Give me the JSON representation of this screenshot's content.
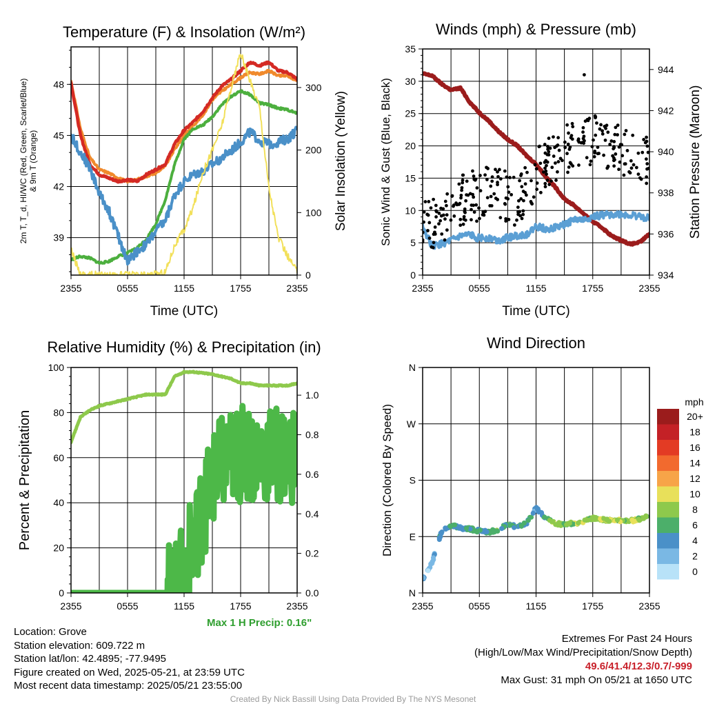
{
  "colors": {
    "temp_red": "#d42a24",
    "temp_orange": "#f08a2c",
    "temp_green": "#4caf3e",
    "temp_blue": "#4a90c8",
    "insolation_yellow": "#f2e05a",
    "wind_blue": "#5b9fd4",
    "gust_black": "#000000",
    "pressure_maroon": "#9b1c1c",
    "rh_green": "#8ec94c",
    "precip_green": "#4db848",
    "extremes_red": "#c8202a",
    "precip_note_green": "#2e9e2e"
  },
  "chart_data": [
    {
      "type": "line",
      "title": "Temperature (F) & Insolation (W/m²)",
      "xlabel": "Time (UTC)",
      "ylabel": "2m T, T_d, HI/WC (Red, Green, Scarlet/Blue) & 9m T (Orange)",
      "ylabel_lines": [
        "2m T, T_d, HI/WC (Red, Green, Scarlet/Blue)",
        "& 9m T (Orange)"
      ],
      "ylabel_right": "Solar Insolation (Yellow)",
      "xticks": [
        "2355",
        "0555",
        "1155",
        "1755",
        "2355"
      ],
      "yticks_left": [
        39,
        42,
        45,
        48
      ],
      "yticks_right": [
        0,
        100,
        200,
        300
      ],
      "ylim_left": [
        36.8,
        50.2
      ],
      "ylim_right": [
        0,
        365
      ],
      "grid": true,
      "x": [
        0,
        1,
        2,
        3,
        4,
        5,
        6,
        7,
        8,
        9,
        10,
        11,
        12,
        13,
        14,
        15,
        16,
        17,
        18,
        19,
        20,
        21,
        22,
        23,
        24
      ],
      "series": [
        {
          "color_key": "temp_orange",
          "axis": "left",
          "width": 4,
          "values": [
            48.2,
            45.4,
            43.7,
            43.0,
            42.8,
            42.5,
            42.3,
            42.4,
            42.6,
            42.8,
            43.2,
            44.2,
            45.0,
            45.6,
            46.2,
            47.1,
            47.6,
            48.0,
            48.4,
            48.7,
            48.6,
            48.8,
            48.5,
            48.5,
            48.2
          ]
        },
        {
          "color_key": "temp_red",
          "axis": "left",
          "width": 4.5,
          "values": [
            48.1,
            45.0,
            43.3,
            42.7,
            42.5,
            42.3,
            42.4,
            42.3,
            42.7,
            43.0,
            43.3,
            44.5,
            45.3,
            45.8,
            46.4,
            47.2,
            47.9,
            48.3,
            48.8,
            49.3,
            49.1,
            49.3,
            48.8,
            48.7,
            48.3
          ]
        },
        {
          "color_key": "temp_green",
          "axis": "left",
          "width": 4,
          "values": [
            37.7,
            37.9,
            37.8,
            37.5,
            37.6,
            37.9,
            38.1,
            38.4,
            38.9,
            39.8,
            41.2,
            43.3,
            44.8,
            45.4,
            45.6,
            46.1,
            46.8,
            47.3,
            47.6,
            47.4,
            46.9,
            46.8,
            46.6,
            46.5,
            46.3
          ]
        },
        {
          "color_key": "temp_blue",
          "axis": "left",
          "width": 4,
          "values": [
            45.0,
            44.0,
            43.1,
            41.6,
            40.6,
            39.1,
            37.6,
            38.2,
            38.6,
            39.4,
            40.0,
            41.5,
            42.3,
            42.7,
            42.9,
            43.3,
            43.7,
            44.1,
            44.6,
            45.2,
            44.7,
            44.5,
            44.6,
            44.8,
            45.3
          ]
        },
        {
          "color_key": "insolation_yellow",
          "axis": "right",
          "width": 2,
          "values": [
            40,
            2,
            1,
            0,
            0,
            0,
            0,
            0,
            0,
            1,
            5,
            48,
            72,
            110,
            165,
            200,
            240,
            300,
            355,
            310,
            270,
            140,
            60,
            30,
            5
          ]
        }
      ]
    },
    {
      "type": "scatter",
      "title": "Winds (mph) & Pressure (mb)",
      "xlabel": "Time (UTC)",
      "ylabel": "Sonic Wind & Gust (Blue, Black)",
      "ylabel_right": "Station Pressure (Maroon)",
      "xticks": [
        "2355",
        "0555",
        "1155",
        "1755",
        "2355"
      ],
      "yticks_left": [
        0,
        5,
        10,
        15,
        20,
        25,
        30,
        35
      ],
      "yticks_right": [
        934,
        936,
        938,
        940,
        942,
        944
      ],
      "ylim_left": [
        0,
        35
      ],
      "ylim_right": [
        934,
        945
      ],
      "grid": true,
      "x": [
        0,
        1,
        2,
        3,
        4,
        5,
        6,
        7,
        8,
        9,
        10,
        11,
        12,
        13,
        14,
        15,
        16,
        17,
        18,
        19,
        20,
        21,
        22,
        23,
        24
      ],
      "series": [
        {
          "color_key": "pressure_maroon",
          "axis": "right",
          "width": 6,
          "values": [
            943.8,
            943.7,
            943.3,
            943.0,
            943.1,
            942.4,
            941.9,
            941.5,
            941.0,
            940.6,
            940.3,
            939.8,
            939.4,
            938.8,
            938.3,
            937.7,
            937.4,
            937.0,
            936.6,
            936.3,
            935.9,
            935.7,
            935.5,
            935.6,
            936.0
          ]
        },
        {
          "color_key": "wind_blue",
          "axis": "left",
          "width": 4,
          "values": [
            7.5,
            4.5,
            4.8,
            5.3,
            6.0,
            6.2,
            5.7,
            5.8,
            5.4,
            5.8,
            6.1,
            6.3,
            7.5,
            7.2,
            7.3,
            7.8,
            8.6,
            8.5,
            9.0,
            9.3,
            9.4,
            9.4,
            9.2,
            9.1,
            8.8
          ]
        },
        {
          "color_key": "gust_black",
          "axis": "left",
          "kind": "points",
          "values": [
            7.5,
            7.8,
            8.5,
            10.5,
            11.5,
            12.0,
            12.4,
            12.8,
            12.5,
            12.2,
            11.5,
            13.5,
            15.5,
            16.8,
            18.5,
            19.5,
            20.5,
            20.5,
            21.0,
            20.5,
            20.0,
            19.5,
            19.0,
            18.5,
            17.5
          ],
          "max": 31
        }
      ]
    },
    {
      "type": "line",
      "title": "Relative Humidity (%) & Precipitation (in)",
      "xlabel": "",
      "ylabel": "Percent & Precipitation",
      "xticks": [
        "2355",
        "0555",
        "1155",
        "1755",
        "2355"
      ],
      "yticks_left": [
        0,
        20,
        40,
        60,
        80,
        100
      ],
      "yticks_right": [
        "0.0",
        "0.2",
        "0.4",
        "0.6",
        "0.8",
        "1.0"
      ],
      "ylim_left": [
        0,
        100
      ],
      "ylim_right": [
        0,
        1.14
      ],
      "grid": true,
      "x": [
        0,
        1,
        2,
        3,
        4,
        5,
        6,
        7,
        8,
        9,
        10,
        11,
        12,
        13,
        14,
        15,
        16,
        17,
        18,
        19,
        20,
        21,
        22,
        23,
        24
      ],
      "series": [
        {
          "color_key": "rh_green",
          "axis": "left",
          "width": 5,
          "values": [
            67,
            78,
            81,
            83,
            84,
            85,
            86,
            87,
            88,
            88,
            88,
            96,
            98,
            98,
            97.5,
            97,
            96,
            95,
            93,
            93,
            92,
            92,
            92,
            92,
            93
          ]
        },
        {
          "color_key": "precip_green",
          "axis": "right",
          "width": 9,
          "values": [
            0,
            0,
            0,
            0,
            0,
            0,
            0,
            0,
            0,
            0,
            0,
            0.01,
            0.1,
            0.27,
            0.42,
            0.56,
            0.65,
            0.69,
            0.7,
            0.7,
            0.7,
            0.7,
            0.7,
            0.7,
            0.7
          ]
        }
      ]
    },
    {
      "type": "scatter",
      "title": "Wind Direction",
      "xlabel": "",
      "ylabel": "Direction (Colored By Speed)",
      "xticks": [
        "2355",
        "0555",
        "1155",
        "1755",
        "2355"
      ],
      "yticks_left": [
        "N",
        "E",
        "S",
        "W",
        "N"
      ],
      "ylim_left": [
        0,
        360
      ],
      "grid": true,
      "x": [
        0,
        1,
        2,
        3,
        4,
        5,
        6,
        7,
        8,
        9,
        10,
        11,
        12,
        13,
        14,
        15,
        16,
        17,
        18,
        19,
        20,
        21,
        22,
        23,
        24
      ],
      "direction_deg": [
        22,
        48,
        98,
        108,
        104,
        102,
        99,
        97,
        101,
        110,
        105,
        112,
        135,
        120,
        110,
        110,
        111,
        114,
        119,
        117,
        116,
        116,
        115,
        118,
        125
      ],
      "speed_mph": [
        4,
        2,
        6,
        6,
        5,
        7,
        6,
        6,
        7,
        7,
        6,
        6,
        4,
        7,
        10,
        8,
        9,
        10,
        9,
        10,
        10,
        9,
        10,
        9,
        8
      ],
      "colorbar": {
        "title": "mph",
        "labels": [
          "20+",
          "18",
          "16",
          "14",
          "12",
          "10",
          "8",
          "6",
          "4",
          "2",
          "0"
        ],
        "colors": [
          "#9b1c1c",
          "#c42126",
          "#e33b24",
          "#f26a2e",
          "#f7a448",
          "#e8e05a",
          "#8ec94c",
          "#4caf6a",
          "#4a90c8",
          "#7ab8e4",
          "#b8e2f8"
        ]
      }
    }
  ],
  "precip_note": "Max 1 H Precip: 0.16\"",
  "info": {
    "location": "Location: Grove",
    "elevation": "Station elevation: 609.722 m",
    "latlon": "Station lat/lon: 42.4895; -77.9495",
    "created": "Figure created on Wed, 2025-05-21, at 23:59 UTC",
    "recent": "Most recent data timestamp: 2025/05/21 23:55:00"
  },
  "extremes": {
    "title": "Extremes For Past 24 Hours",
    "legend": "(High/Low/Max Wind/Precipitation/Snow Depth)",
    "values": "49.6/41.4/12.3/0.7/-999",
    "gust": "Max Gust: 31 mph On 05/21 at 1650 UTC"
  },
  "credit": "Created By Nick Bassill Using Data Provided By The NYS Mesonet"
}
